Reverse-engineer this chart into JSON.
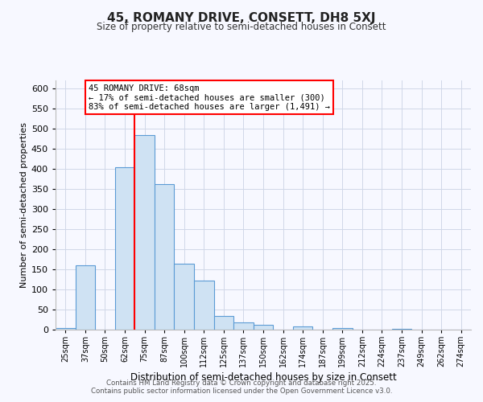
{
  "title": "45, ROMANY DRIVE, CONSETT, DH8 5XJ",
  "subtitle": "Size of property relative to semi-detached houses in Consett",
  "xlabel": "Distribution of semi-detached houses by size in Consett",
  "ylabel": "Number of semi-detached properties",
  "bin_labels": [
    "25sqm",
    "37sqm",
    "50sqm",
    "62sqm",
    "75sqm",
    "87sqm",
    "100sqm",
    "112sqm",
    "125sqm",
    "137sqm",
    "150sqm",
    "162sqm",
    "174sqm",
    "187sqm",
    "199sqm",
    "212sqm",
    "224sqm",
    "237sqm",
    "249sqm",
    "262sqm",
    "274sqm"
  ],
  "bar_values": [
    5,
    160,
    0,
    405,
    485,
    362,
    165,
    123,
    35,
    18,
    13,
    0,
    9,
    0,
    5,
    0,
    0,
    2,
    0,
    0,
    0
  ],
  "bar_color": "#cfe2f3",
  "bar_edge_color": "#5b9bd5",
  "ylim": [
    0,
    620
  ],
  "yticks": [
    0,
    50,
    100,
    150,
    200,
    250,
    300,
    350,
    400,
    450,
    500,
    550,
    600
  ],
  "annotation_title": "45 ROMANY DRIVE: 68sqm",
  "annotation_line1": "← 17% of semi-detached houses are smaller (300)",
  "annotation_line2": "83% of semi-detached houses are larger (1,491) →",
  "footer1": "Contains HM Land Registry data © Crown copyright and database right 2025.",
  "footer2": "Contains public sector information licensed under the Open Government Licence v3.0.",
  "background_color": "#f7f8ff",
  "grid_color": "#d0d8e8",
  "property_line_bin_index": 3.5
}
